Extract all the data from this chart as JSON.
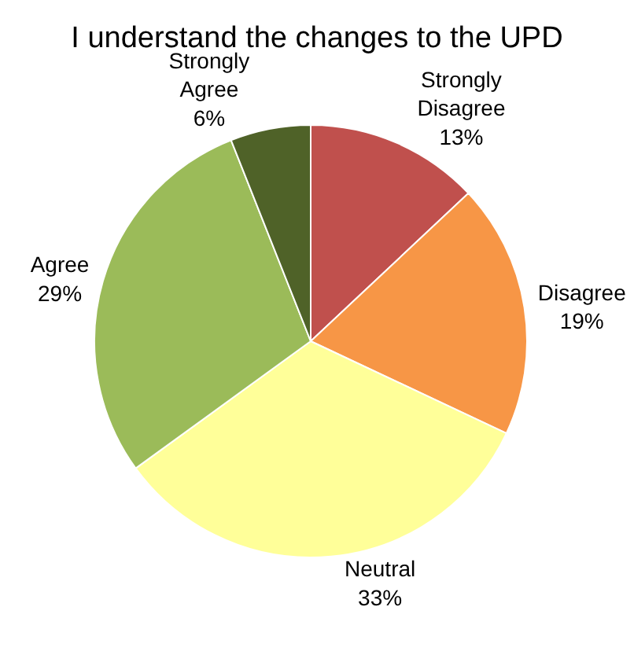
{
  "chart_data": {
    "type": "pie",
    "title": "I understand the changes to the UPD",
    "categories": [
      "Strongly Disagree",
      "Disagree",
      "Neutral",
      "Agree",
      "Strongly Agree"
    ],
    "values": [
      13,
      19,
      33,
      29,
      6
    ],
    "value_labels": [
      "13%",
      "19%",
      "33%",
      "29%",
      "6%"
    ],
    "colors": [
      "#c0504d",
      "#f79646",
      "#ffff99",
      "#9bbb59",
      "#4f6228"
    ],
    "legend": false
  }
}
